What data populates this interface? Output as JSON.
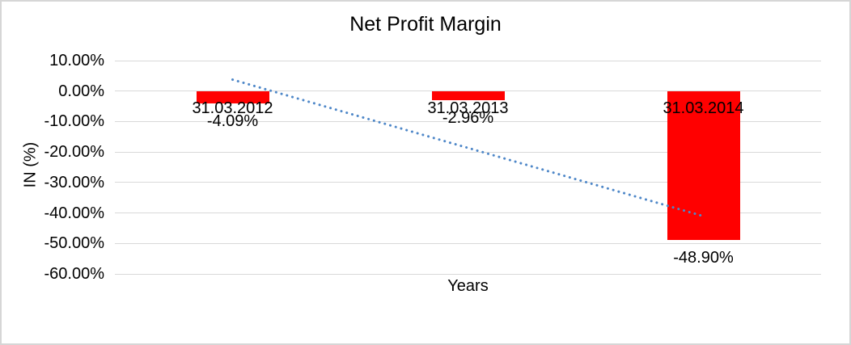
{
  "chart_data": {
    "type": "bar",
    "title": "Net Profit Margin",
    "xlabel": "Years",
    "ylabel": "IN (%)",
    "categories": [
      "31.03.2012",
      "31.03.2013",
      "31.03.2014"
    ],
    "values": [
      -4.09,
      -2.96,
      -48.9
    ],
    "value_labels": [
      "-4.09%",
      "-2.96%",
      "-48.90%"
    ],
    "ylim": [
      -60,
      10
    ],
    "y_tick_values": [
      10,
      0,
      -10,
      -20,
      -30,
      -40,
      -50,
      -60
    ],
    "y_tick_labels": [
      "10.00%",
      "0.00%",
      "-10.00%",
      "-20.00%",
      "-30.00%",
      "-40.00%",
      "-50.00%",
      "-60.00%"
    ],
    "grid": true,
    "legend": "none",
    "bar_color": "#ff0000",
    "gridline_color": "#d9d9d9",
    "text_color": "#000000",
    "trendline": {
      "type": "linear",
      "style": "dotted",
      "color": "#4e87c8",
      "start_value": 3.75,
      "end_value": -41.05
    }
  }
}
